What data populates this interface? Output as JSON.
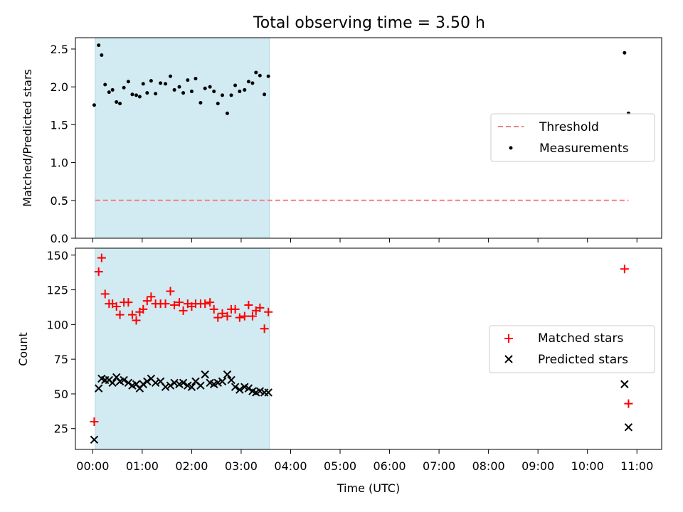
{
  "figure": {
    "title": "Total observing time = 3.50 h",
    "xlabel": "Time (UTC)",
    "x_ticks": [
      "00:00",
      "01:00",
      "02:00",
      "03:00",
      "04:00",
      "05:00",
      "06:00",
      "07:00",
      "08:00",
      "09:00",
      "10:00",
      "11:00"
    ],
    "x_range_hours": [
      -0.35,
      11.5
    ],
    "observing_window_hours": [
      0.05,
      3.57
    ]
  },
  "colors": {
    "shade": "#add8e6",
    "threshold": "#f08080",
    "measurements": "#000000",
    "matched": "#ff0000",
    "predicted": "#000000"
  },
  "chart_data": [
    {
      "type": "scatter",
      "ylabel": "Matched/Predicted stars",
      "ylim": [
        0,
        2.65
      ],
      "y_ticks": [
        "0.0",
        "0.5",
        "1.0",
        "1.5",
        "2.0",
        "2.5"
      ],
      "legend_position": "center-right",
      "legend": [
        "Threshold",
        "Measurements"
      ],
      "threshold": {
        "name": "Threshold",
        "value": 0.5,
        "x_range": [
          0.05,
          10.83
        ]
      },
      "series": [
        {
          "name": "Measurements",
          "x": [
            0.03,
            0.12,
            0.18,
            0.25,
            0.33,
            0.4,
            0.48,
            0.55,
            0.63,
            0.72,
            0.8,
            0.88,
            0.95,
            1.02,
            1.1,
            1.18,
            1.27,
            1.37,
            1.47,
            1.57,
            1.65,
            1.75,
            1.83,
            1.92,
            2.0,
            2.08,
            2.18,
            2.27,
            2.37,
            2.45,
            2.53,
            2.62,
            2.72,
            2.8,
            2.88,
            2.97,
            3.07,
            3.15,
            3.23,
            3.3,
            3.38,
            3.47,
            3.55,
            10.75,
            10.83
          ],
          "y": [
            1.76,
            2.55,
            2.42,
            2.03,
            1.93,
            1.96,
            1.8,
            1.78,
            1.99,
            2.07,
            1.9,
            1.89,
            1.87,
            2.04,
            1.92,
            2.08,
            1.91,
            2.05,
            2.04,
            2.14,
            1.96,
            2.0,
            1.92,
            2.09,
            1.94,
            2.11,
            1.79,
            1.98,
            2.0,
            1.94,
            1.78,
            1.89,
            1.65,
            1.89,
            2.02,
            1.94,
            1.96,
            2.07,
            2.05,
            2.19,
            2.15,
            1.9,
            2.14,
            2.45,
            1.65
          ]
        }
      ]
    },
    {
      "type": "scatter",
      "ylabel": "Count",
      "ylim": [
        10,
        155
      ],
      "y_ticks": [
        "25",
        "50",
        "75",
        "100",
        "125",
        "150"
      ],
      "legend_position": "center-right",
      "legend": [
        "Matched stars",
        "Predicted stars"
      ],
      "series": [
        {
          "name": "Matched stars",
          "marker": "+",
          "x": [
            0.03,
            0.12,
            0.18,
            0.25,
            0.33,
            0.4,
            0.48,
            0.55,
            0.63,
            0.72,
            0.8,
            0.88,
            0.95,
            1.02,
            1.1,
            1.18,
            1.27,
            1.37,
            1.47,
            1.57,
            1.65,
            1.75,
            1.83,
            1.92,
            2.0,
            2.08,
            2.18,
            2.27,
            2.37,
            2.45,
            2.53,
            2.62,
            2.72,
            2.8,
            2.88,
            2.97,
            3.07,
            3.15,
            3.23,
            3.3,
            3.38,
            3.47,
            3.55,
            10.75,
            10.83
          ],
          "y": [
            30,
            138,
            148,
            122,
            115,
            115,
            113,
            107,
            116,
            116,
            107,
            103,
            109,
            111,
            117,
            120,
            115,
            115,
            115,
            124,
            114,
            116,
            110,
            115,
            113,
            115,
            115,
            115,
            116,
            111,
            105,
            108,
            106,
            111,
            111,
            105,
            106,
            114,
            106,
            110,
            112,
            97,
            109,
            140,
            43
          ]
        },
        {
          "name": "Predicted stars",
          "marker": "x",
          "x": [
            0.03,
            0.12,
            0.18,
            0.25,
            0.33,
            0.4,
            0.48,
            0.55,
            0.63,
            0.72,
            0.8,
            0.88,
            0.95,
            1.02,
            1.1,
            1.18,
            1.27,
            1.37,
            1.47,
            1.57,
            1.65,
            1.75,
            1.83,
            1.92,
            2.0,
            2.08,
            2.18,
            2.27,
            2.37,
            2.45,
            2.53,
            2.62,
            2.72,
            2.8,
            2.88,
            2.97,
            3.07,
            3.15,
            3.23,
            3.3,
            3.38,
            3.47,
            3.55,
            10.75,
            10.83
          ],
          "y": [
            17,
            54,
            61,
            60,
            60,
            58,
            62,
            59,
            60,
            58,
            56,
            57,
            54,
            57,
            59,
            61,
            58,
            59,
            55,
            56,
            58,
            57,
            58,
            56,
            55,
            59,
            56,
            64,
            58,
            57,
            58,
            59,
            64,
            60,
            55,
            53,
            55,
            54,
            52,
            51,
            52,
            51,
            51,
            57,
            26
          ]
        }
      ]
    }
  ]
}
